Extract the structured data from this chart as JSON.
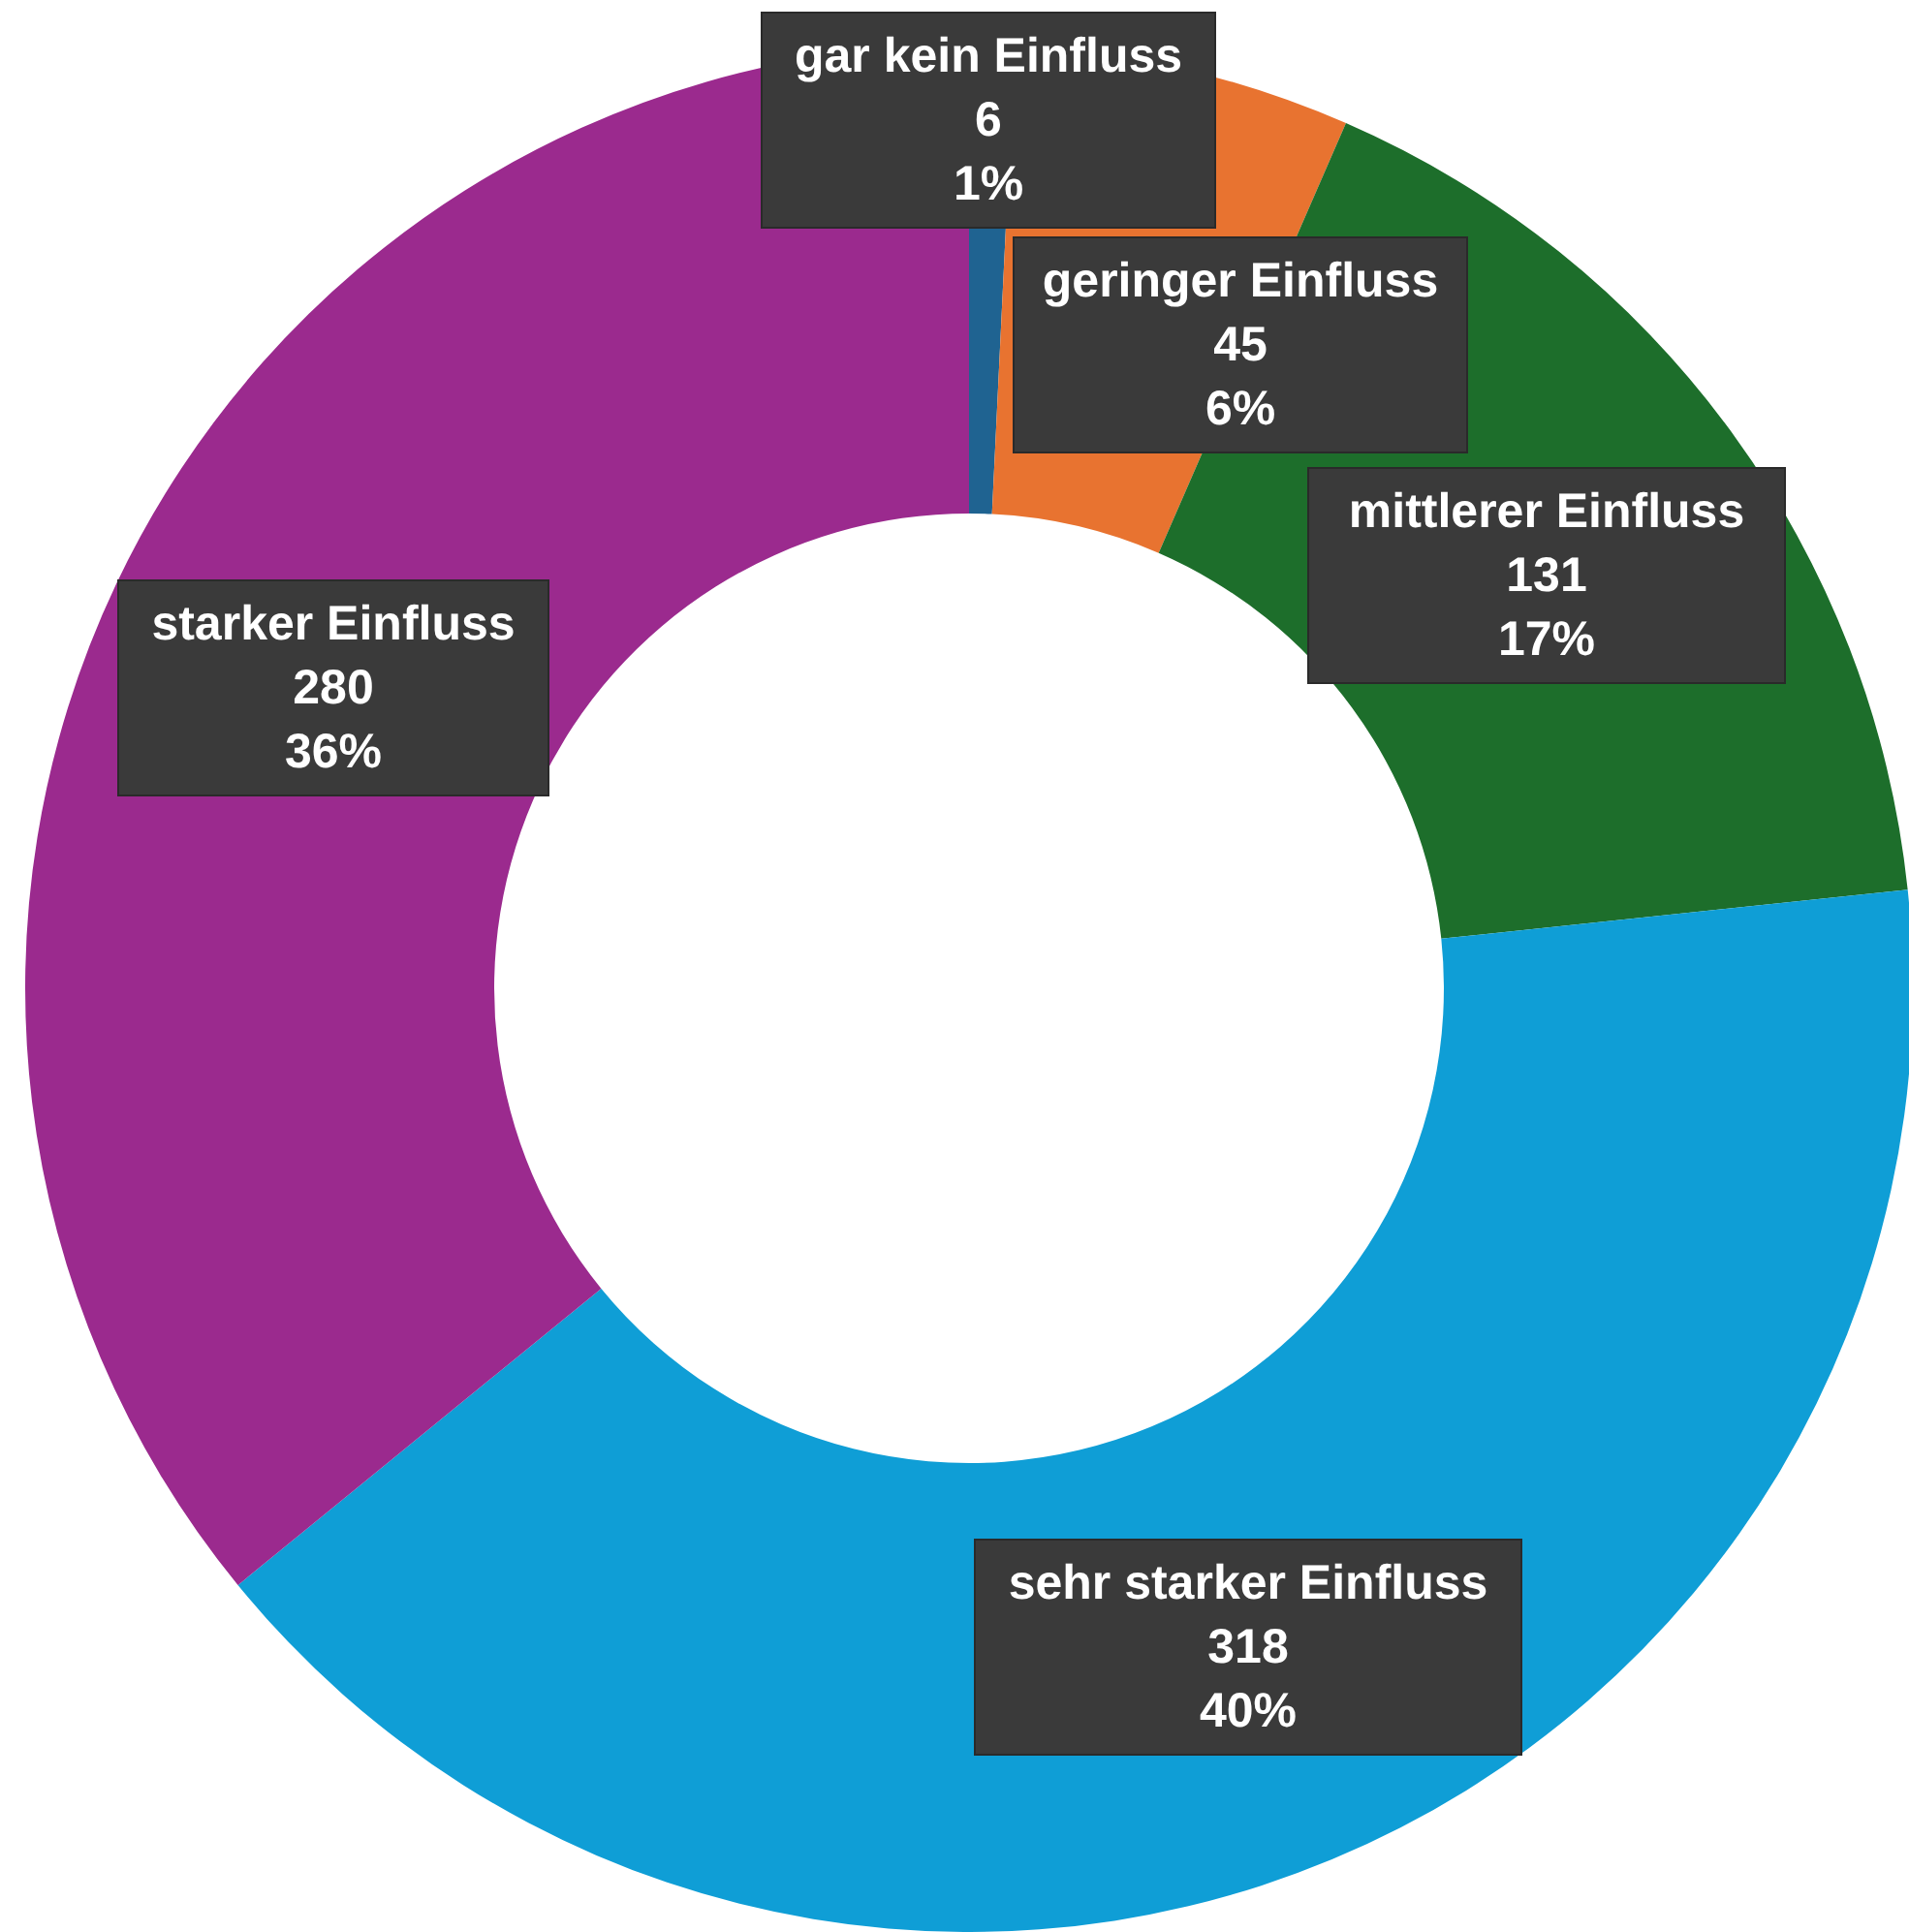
{
  "chart_data": {
    "type": "donut",
    "categories": [
      "gar kein Einfluss",
      "geringer Einfluss",
      "mittlerer Einfluss",
      "sehr starker Einfluss",
      "starker Einfluss"
    ],
    "values": [
      6,
      45,
      131,
      318,
      280
    ],
    "colors": [
      "#1f6391",
      "#e87330",
      "#1d6e2b",
      "#0f9ed6",
      "#9b2a8e"
    ],
    "value_labels": [
      "6\n1%",
      "45\n6%",
      "131\n17%",
      "318\n40%",
      "280\n36%"
    ]
  }
}
